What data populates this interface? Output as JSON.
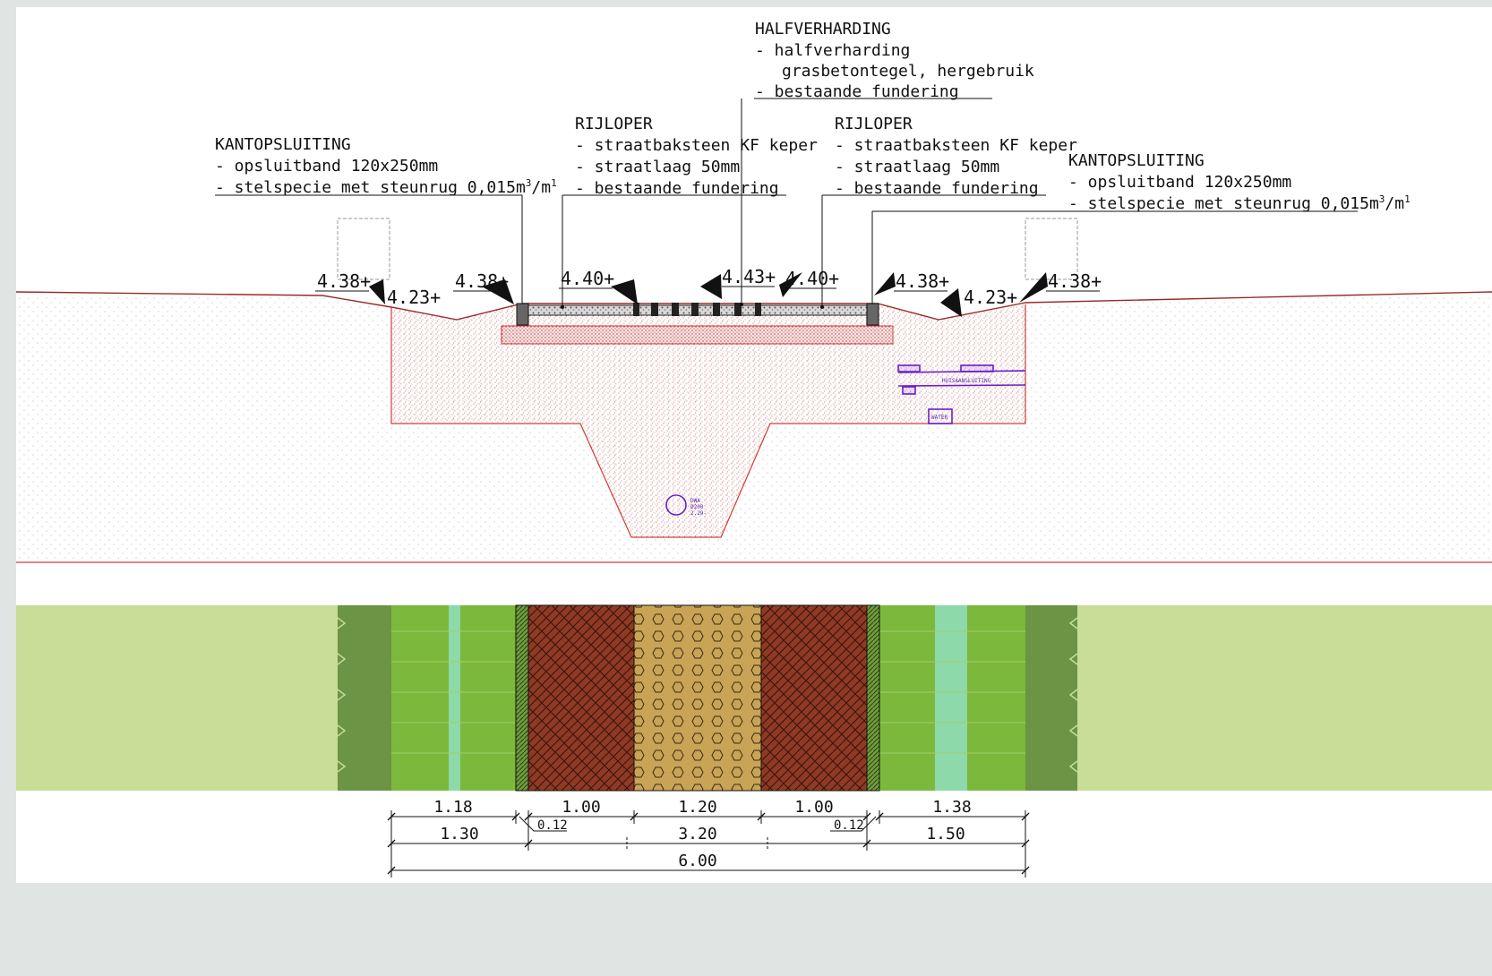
{
  "callouts": {
    "halfverharding": {
      "title": "HALFVERHARDING",
      "line1": "- halfverharding",
      "line2": "grasbetontegel, hergebruik",
      "line3": "- bestaande fundering"
    },
    "rijloper_left": {
      "title": "RIJLOPER",
      "line1": "- straatbaksteen KF keper",
      "line2": "- straatlaag 50mm",
      "line3": "- bestaande fundering"
    },
    "rijloper_right": {
      "title": "RIJLOPER",
      "line1": "- straatbaksteen KF keper",
      "line2": "- straatlaag 50mm",
      "line3": "- bestaande fundering"
    },
    "kant_left": {
      "title": "KANTOPSLUITING",
      "line1": "- opsluitband 120x250mm",
      "line2_pre": "- stelspecie met steunrug 0,015m",
      "sup1": "3",
      "mid": "/m",
      "sup2": "1"
    },
    "kant_right": {
      "title": "KANTOPSLUITING",
      "line1": "- opsluitband 120x250mm",
      "line2_pre": "- stelspecie met steunrug 0,015m",
      "sup1": "3",
      "mid": "/m",
      "sup2": "1"
    }
  },
  "levels": {
    "l1": "4.38+",
    "l2": "4.23+",
    "l3": "4.38+",
    "l4": "4.40+",
    "l5": "4.43+",
    "l6": "4.40+",
    "l7": "4.38+",
    "l8": "4.23+",
    "l9": "4.38+"
  },
  "utilities": {
    "huisaansluiting": "HUISAANSLUITING",
    "water": "WATER",
    "dwa1": "DWA",
    "dwa2": "Ø200",
    "dwa3": "2.29-"
  },
  "dimensions": {
    "row1": [
      "1.18",
      "1.00",
      "1.20",
      "1.00",
      "1.38"
    ],
    "small_left": "0.12",
    "small_right": "0.12",
    "row2": [
      "1.30",
      "3.20",
      "1.50"
    ],
    "total": "6.00"
  },
  "colors": {
    "soil_red": "#d33a3a",
    "brick": "#8e3a24",
    "grass_concrete": "#c9a456",
    "grass": "#7cb83c",
    "light_grass": "#c8dd96",
    "dark_grass": "#6b9444",
    "ditch_water": "#8ed9a9",
    "cable_purple": "#6a1fc8"
  }
}
